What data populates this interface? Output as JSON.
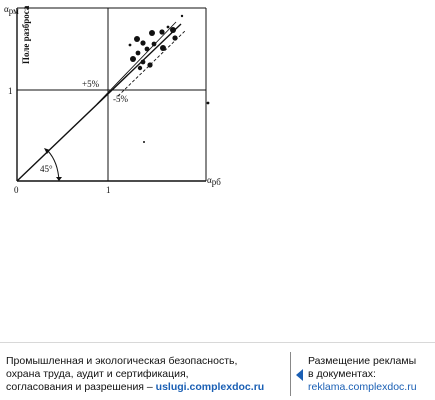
{
  "diagram": {
    "y_axis_label": "α",
    "y_axis_subscript": "рм",
    "x_axis_label": "α",
    "x_axis_subscript": "рб",
    "field_label": "Поле разброса",
    "origin_label": "0",
    "x_tick_label": "1",
    "y_tick_label": "1",
    "plus_label": "+5%",
    "minus_label": "-5%",
    "angle_label": "45°"
  },
  "footer": {
    "left_lines": [
      "Промышленная и экологическая безопасность,",
      "охрана труда, аудит и сертификация,"
    ],
    "left_last_prefix": "согласования и разрешения – ",
    "left_link": "uslugi.complexdoc.ru",
    "right_line1": "Размещение рекламы",
    "right_line2": "в документах:",
    "right_link": "reklama.complexdoc.ru"
  },
  "colors": {
    "link": "#1a5fb4",
    "ink": "#111111"
  }
}
